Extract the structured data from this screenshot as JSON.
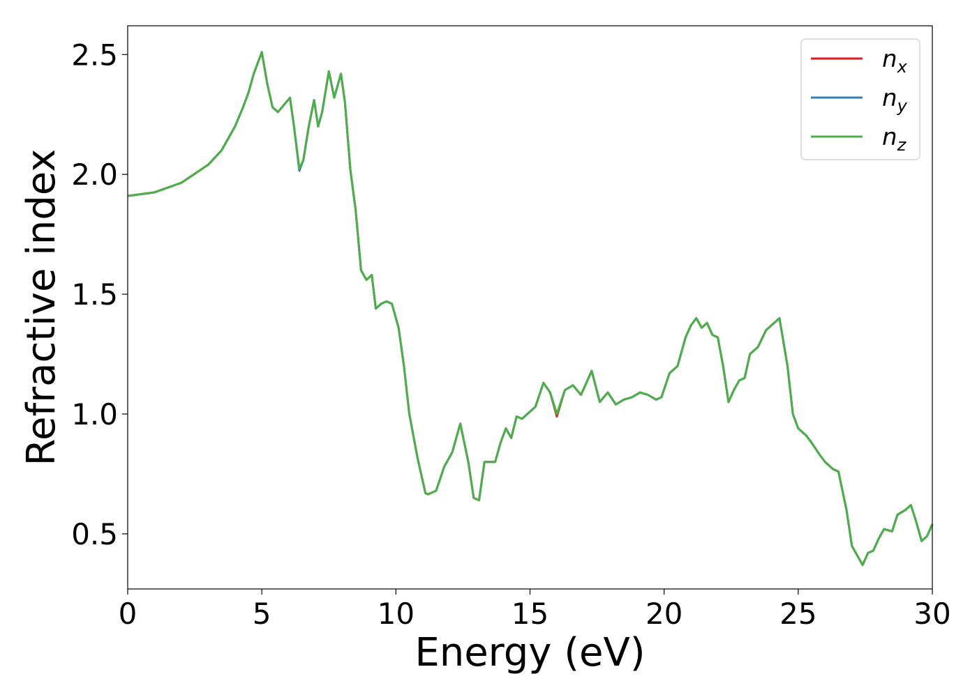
{
  "chart_data": {
    "type": "line",
    "xlabel": "Energy (eV)",
    "ylabel": "Refractive index",
    "xlim": [
      0,
      30
    ],
    "ylim": [
      0.27,
      2.62
    ],
    "x_ticks": [
      0,
      5,
      10,
      15,
      20,
      25,
      30
    ],
    "y_ticks": [
      0.5,
      1.0,
      1.5,
      2.0,
      2.5
    ],
    "y_tick_labels": [
      "0.5",
      "1.0",
      "1.5",
      "2.0",
      "2.5"
    ],
    "grid": false,
    "legend_position": "top-right",
    "legend": [
      {
        "base": "n",
        "sub": "x",
        "color": "#e41a1c"
      },
      {
        "base": "n",
        "sub": "y",
        "color": "#377eb8"
      },
      {
        "base": "n",
        "sub": "z",
        "color": "#4daf4a"
      }
    ],
    "x": [
      0,
      1,
      2,
      3,
      3.5,
      4,
      4.3,
      4.5,
      4.7,
      5.0,
      5.2,
      5.4,
      5.6,
      5.9,
      6.05,
      6.2,
      6.4,
      6.55,
      6.75,
      6.95,
      7.1,
      7.25,
      7.5,
      7.7,
      7.95,
      8.1,
      8.3,
      8.5,
      8.7,
      8.9,
      9.1,
      9.25,
      9.45,
      9.65,
      9.85,
      10.1,
      10.3,
      10.5,
      10.8,
      11.1,
      11.2,
      11.5,
      11.8,
      12.1,
      12.4,
      12.7,
      12.9,
      13.1,
      13.3,
      13.5,
      13.7,
      13.9,
      14.1,
      14.3,
      14.5,
      14.7,
      14.9,
      15.2,
      15.5,
      15.75,
      16.0,
      16.3,
      16.6,
      16.9,
      17.3,
      17.6,
      17.9,
      18.2,
      18.5,
      18.8,
      19.1,
      19.4,
      19.7,
      19.9,
      20.2,
      20.5,
      20.8,
      21.0,
      21.2,
      21.4,
      21.6,
      21.8,
      22.0,
      22.2,
      22.4,
      22.6,
      22.8,
      23.0,
      23.2,
      23.5,
      23.8,
      24.1,
      24.3,
      24.6,
      24.8,
      25.0,
      25.3,
      25.5,
      25.8,
      26.0,
      26.3,
      26.5,
      26.8,
      27.0,
      27.4,
      27.6,
      27.8,
      28.0,
      28.2,
      28.5,
      28.7,
      29.0,
      29.2,
      29.4,
      29.6,
      29.8,
      30.0
    ],
    "series": [
      {
        "name": "nx",
        "color": "#e41a1c",
        "values": [
          1.91,
          1.925,
          1.965,
          2.04,
          2.1,
          2.2,
          2.28,
          2.34,
          2.42,
          2.51,
          2.38,
          2.28,
          2.26,
          2.3,
          2.32,
          2.2,
          2.02,
          2.06,
          2.2,
          2.31,
          2.2,
          2.26,
          2.43,
          2.32,
          2.42,
          2.3,
          2.02,
          1.85,
          1.6,
          1.56,
          1.58,
          1.44,
          1.46,
          1.47,
          1.46,
          1.36,
          1.2,
          1.0,
          0.82,
          0.67,
          0.665,
          0.68,
          0.78,
          0.84,
          0.96,
          0.8,
          0.65,
          0.64,
          0.8,
          0.8,
          0.8,
          0.88,
          0.94,
          0.9,
          0.99,
          0.98,
          1.0,
          1.03,
          1.13,
          1.09,
          0.99,
          1.1,
          1.12,
          1.08,
          1.18,
          1.05,
          1.09,
          1.04,
          1.06,
          1.07,
          1.09,
          1.08,
          1.06,
          1.07,
          1.17,
          1.2,
          1.32,
          1.37,
          1.4,
          1.36,
          1.38,
          1.33,
          1.32,
          1.2,
          1.05,
          1.1,
          1.14,
          1.15,
          1.25,
          1.28,
          1.35,
          1.38,
          1.4,
          1.2,
          1.0,
          0.94,
          0.91,
          0.88,
          0.83,
          0.8,
          0.77,
          0.76,
          0.6,
          0.45,
          0.37,
          0.42,
          0.43,
          0.48,
          0.52,
          0.51,
          0.58,
          0.6,
          0.62,
          0.55,
          0.47,
          0.49,
          0.54
        ]
      },
      {
        "name": "ny",
        "color": "#377eb8",
        "values": [
          1.91,
          1.925,
          1.965,
          2.04,
          2.1,
          2.2,
          2.28,
          2.34,
          2.42,
          2.51,
          2.38,
          2.28,
          2.26,
          2.3,
          2.32,
          2.2,
          2.015,
          2.06,
          2.2,
          2.31,
          2.2,
          2.26,
          2.43,
          2.32,
          2.42,
          2.3,
          2.02,
          1.85,
          1.6,
          1.56,
          1.58,
          1.44,
          1.46,
          1.47,
          1.46,
          1.36,
          1.2,
          1.0,
          0.82,
          0.67,
          0.665,
          0.68,
          0.78,
          0.84,
          0.96,
          0.8,
          0.65,
          0.64,
          0.8,
          0.8,
          0.8,
          0.88,
          0.94,
          0.9,
          0.99,
          0.98,
          1.0,
          1.03,
          1.13,
          1.09,
          1.0,
          1.1,
          1.12,
          1.08,
          1.18,
          1.05,
          1.09,
          1.04,
          1.06,
          1.07,
          1.09,
          1.08,
          1.06,
          1.07,
          1.17,
          1.2,
          1.32,
          1.37,
          1.4,
          1.36,
          1.38,
          1.33,
          1.32,
          1.2,
          1.05,
          1.1,
          1.14,
          1.15,
          1.25,
          1.28,
          1.35,
          1.38,
          1.4,
          1.2,
          1.0,
          0.94,
          0.91,
          0.88,
          0.83,
          0.8,
          0.77,
          0.76,
          0.6,
          0.45,
          0.37,
          0.42,
          0.43,
          0.48,
          0.52,
          0.51,
          0.58,
          0.6,
          0.62,
          0.55,
          0.47,
          0.49,
          0.54
        ]
      },
      {
        "name": "nz",
        "color": "#4daf4a",
        "values": [
          1.91,
          1.925,
          1.965,
          2.04,
          2.1,
          2.2,
          2.28,
          2.34,
          2.42,
          2.51,
          2.38,
          2.28,
          2.26,
          2.3,
          2.32,
          2.2,
          2.025,
          2.06,
          2.2,
          2.31,
          2.2,
          2.26,
          2.43,
          2.32,
          2.42,
          2.3,
          2.02,
          1.85,
          1.6,
          1.56,
          1.58,
          1.44,
          1.46,
          1.47,
          1.46,
          1.36,
          1.2,
          1.0,
          0.82,
          0.67,
          0.665,
          0.68,
          0.78,
          0.84,
          0.96,
          0.8,
          0.65,
          0.64,
          0.8,
          0.8,
          0.8,
          0.88,
          0.94,
          0.9,
          0.99,
          0.98,
          1.0,
          1.03,
          1.13,
          1.09,
          1.0,
          1.1,
          1.12,
          1.08,
          1.18,
          1.05,
          1.09,
          1.04,
          1.06,
          1.07,
          1.09,
          1.08,
          1.06,
          1.07,
          1.17,
          1.2,
          1.32,
          1.37,
          1.4,
          1.36,
          1.38,
          1.33,
          1.32,
          1.2,
          1.05,
          1.1,
          1.14,
          1.15,
          1.25,
          1.28,
          1.35,
          1.38,
          1.4,
          1.2,
          1.0,
          0.94,
          0.91,
          0.88,
          0.83,
          0.8,
          0.77,
          0.76,
          0.6,
          0.45,
          0.37,
          0.42,
          0.43,
          0.48,
          0.52,
          0.51,
          0.58,
          0.6,
          0.62,
          0.55,
          0.47,
          0.49,
          0.54
        ]
      }
    ]
  }
}
